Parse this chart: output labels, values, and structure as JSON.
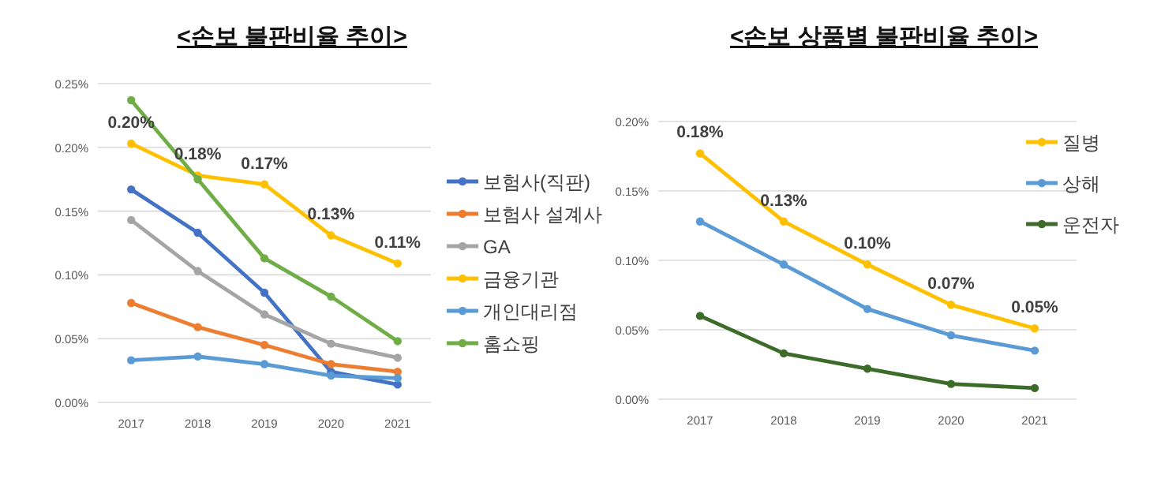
{
  "chart_data": [
    {
      "type": "line",
      "title": "<손보 불판비율 추이>",
      "categories": [
        "2017",
        "2018",
        "2019",
        "2020",
        "2021"
      ],
      "ylim": [
        0,
        0.25
      ],
      "yticks": [
        {
          "value": 0,
          "label": "0.00%"
        },
        {
          "value": 0.05,
          "label": "0.05%"
        },
        {
          "value": 0.1,
          "label": "0.10%"
        },
        {
          "value": 0.15,
          "label": "0.15%"
        },
        {
          "value": 0.2,
          "label": "0.20%"
        },
        {
          "value": 0.25,
          "label": "0.25%"
        }
      ],
      "grid": "y",
      "legend": "right",
      "marker": "circle",
      "series": [
        {
          "name": "보험사(직판)",
          "color": "#4472c4",
          "values": [
            0.167,
            0.133,
            0.086,
            0.024,
            0.014
          ]
        },
        {
          "name": "보험사 설계사",
          "color": "#ed7d31",
          "values": [
            0.078,
            0.059,
            0.045,
            0.03,
            0.024
          ]
        },
        {
          "name": "GA",
          "color": "#a5a5a5",
          "values": [
            0.143,
            0.103,
            0.069,
            0.046,
            0.035
          ]
        },
        {
          "name": "금융기관",
          "color": "#ffc000",
          "values": [
            0.203,
            0.178,
            0.171,
            0.131,
            0.109
          ],
          "value_labels": [
            "0.20%",
            "0.18%",
            "0.17%",
            "0.13%",
            "0.11%"
          ]
        },
        {
          "name": "개인대리점",
          "color": "#5b9bd5",
          "values": [
            0.033,
            0.036,
            0.03,
            0.021,
            0.019
          ]
        },
        {
          "name": "홈쇼핑",
          "color": "#70ad47",
          "values": [
            0.237,
            0.175,
            0.113,
            0.083,
            0.048
          ]
        }
      ]
    },
    {
      "type": "line",
      "title": "<손보 상품별 불판비율 추이>",
      "categories": [
        "2017",
        "2018",
        "2019",
        "2020",
        "2021"
      ],
      "ylim": [
        0,
        0.2
      ],
      "yticks": [
        {
          "value": 0,
          "label": "0.00%"
        },
        {
          "value": 0.05,
          "label": "0.05%"
        },
        {
          "value": 0.1,
          "label": "0.10%"
        },
        {
          "value": 0.15,
          "label": "0.15%"
        },
        {
          "value": 0.2,
          "label": "0.20%"
        }
      ],
      "grid": "y",
      "legend": "top right",
      "marker": "circle",
      "series": [
        {
          "name": "질병",
          "color": "#ffc000",
          "values": [
            0.177,
            0.128,
            0.097,
            0.068,
            0.051
          ],
          "value_labels": [
            "0.18%",
            "0.13%",
            "0.10%",
            "0.07%",
            "0.05%"
          ]
        },
        {
          "name": "상해",
          "color": "#5b9bd5",
          "values": [
            0.128,
            0.097,
            0.065,
            0.046,
            0.035
          ]
        },
        {
          "name": "운전자",
          "color": "#3d6b2a",
          "values": [
            0.06,
            0.033,
            0.022,
            0.011,
            0.008
          ]
        }
      ]
    }
  ]
}
